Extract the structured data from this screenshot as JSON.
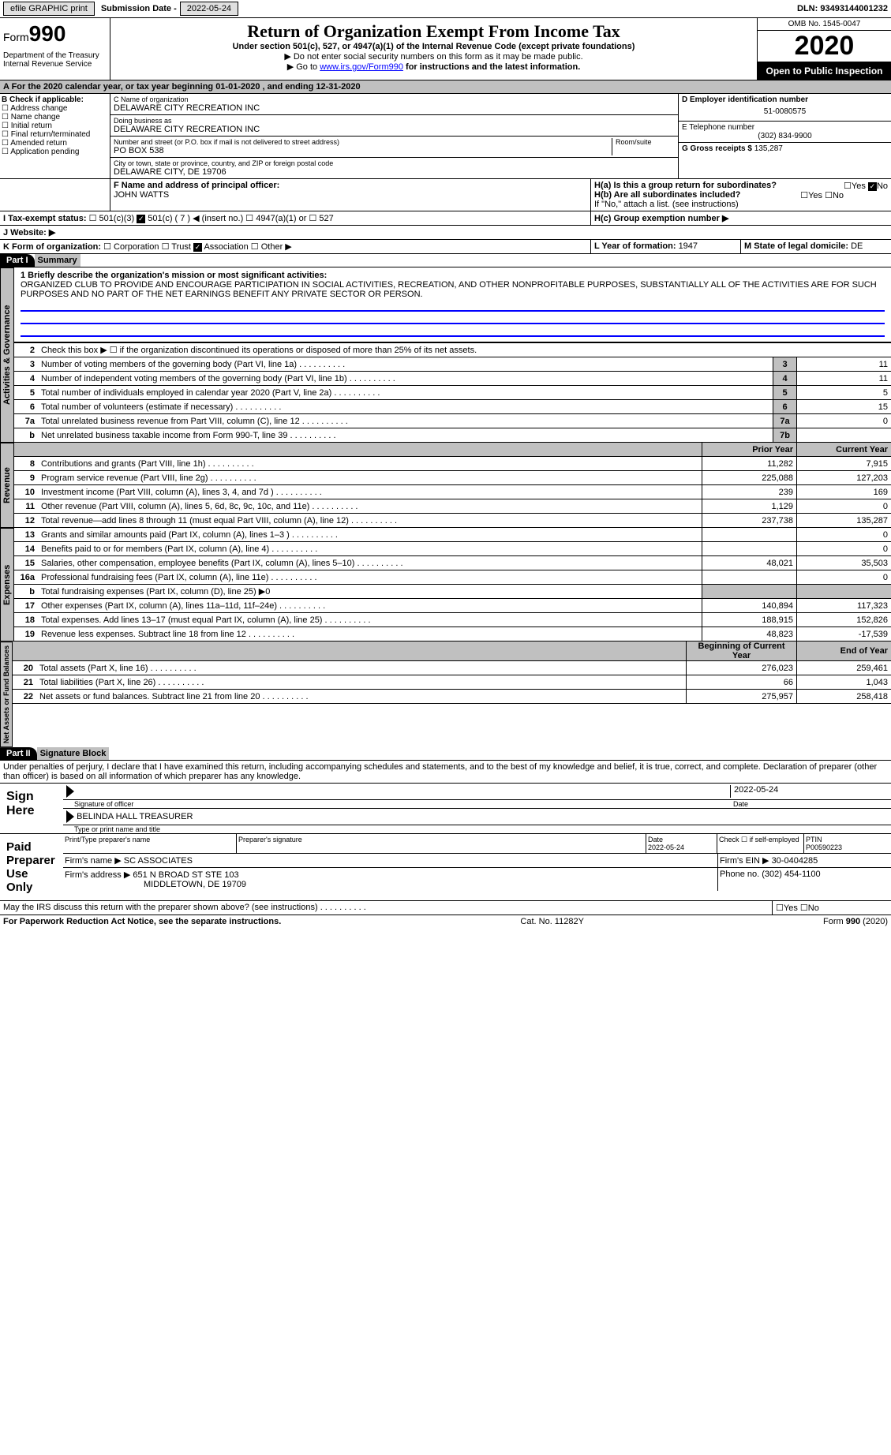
{
  "topbar": {
    "efile": "efile GRAPHIC print",
    "sub_label": "Submission Date - ",
    "sub_date": "2022-05-24",
    "dln_label": "DLN: ",
    "dln": "93493144001232"
  },
  "header": {
    "form_word": "Form",
    "form_num": "990",
    "title": "Return of Organization Exempt From Income Tax",
    "subtitle": "Under section 501(c), 527, or 4947(a)(1) of the Internal Revenue Code (except private foundations)",
    "note1": "▶ Do not enter social security numbers on this form as it may be made public.",
    "note2_pre": "▶ Go to ",
    "note2_link": "www.irs.gov/Form990",
    "note2_post": " for instructions and the latest information.",
    "omb": "OMB No. 1545-0047",
    "year": "2020",
    "inspect": "Open to Public Inspection",
    "dept": "Department of the Treasury\nInternal Revenue Service"
  },
  "period": "A For the 2020 calendar year, or tax year beginning 01-01-2020      , and ending 12-31-2020",
  "sectionB": {
    "label": "B Check if applicable:",
    "items": [
      "Address change",
      "Name change",
      "Initial return",
      "Final return/terminated",
      "Amended return",
      "Application pending"
    ]
  },
  "sectionC": {
    "name_label": "C Name of organization",
    "name": "DELAWARE CITY RECREATION INC",
    "dba_label": "Doing business as",
    "dba": "DELAWARE CITY RECREATION INC",
    "addr_label": "Number and street (or P.O. box if mail is not delivered to street address)",
    "addr": "PO BOX 538",
    "room_label": "Room/suite",
    "city_label": "City or town, state or province, country, and ZIP or foreign postal code",
    "city": "DELAWARE CITY, DE  19706"
  },
  "sectionD": {
    "ein_label": "D Employer identification number",
    "ein": "51-0080575",
    "phone_label": "E Telephone number",
    "phone": "(302) 834-9900",
    "gross_label": "G Gross receipts $ ",
    "gross": "135,287"
  },
  "sectionF": {
    "label": "F  Name and address of principal officer:",
    "name": "JOHN WATTS"
  },
  "sectionH": {
    "a": "H(a)  Is this a group return for subordinates?",
    "b": "H(b)  Are all subordinates included?",
    "b_note": "If \"No,\" attach a list. (see instructions)",
    "c": "H(c)  Group exemption number ▶",
    "yes": "Yes",
    "no": "No"
  },
  "sectionI": {
    "label": "I    Tax-exempt status:",
    "opts": [
      "501(c)(3)",
      "501(c) ( 7 ) ◀ (insert no.)",
      "4947(a)(1) or",
      "527"
    ]
  },
  "sectionJ": {
    "label": "J    Website: ▶"
  },
  "sectionK": {
    "label": "K Form of organization:",
    "opts": [
      "Corporation",
      "Trust",
      "Association",
      "Other ▶"
    ]
  },
  "sectionL": {
    "label": "L Year of formation: ",
    "val": "1947"
  },
  "sectionM": {
    "label": "M State of legal domicile: ",
    "val": "DE"
  },
  "part1": {
    "hdr": "Part I",
    "title": "Summary",
    "tab1": "Activities & Governance",
    "tab2": "Revenue",
    "tab3": "Expenses",
    "tab4": "Net Assets or Fund Balances",
    "line1_label": "1  Briefly describe the organization's mission or most significant activities:",
    "mission": "ORGANIZED CLUB TO PROVIDE AND ENCOURAGE PARTICIPATION IN SOCIAL ACTIVITIES, RECREATION, AND OTHER NONPROFITABLE PURPOSES, SUBSTANTIALLY ALL OF THE ACTIVITIES ARE FOR SUCH PURPOSES AND NO PART OF THE NET EARNINGS BENEFIT ANY PRIVATE SECTOR OR PERSON.",
    "line2": "Check this box ▶ ☐ if the organization discontinued its operations or disposed of more than 25% of its net assets.",
    "lines_gov": [
      {
        "n": "3",
        "t": "Number of voting members of the governing body (Part VI, line 1a)",
        "b": "3",
        "v": "11"
      },
      {
        "n": "4",
        "t": "Number of independent voting members of the governing body (Part VI, line 1b)",
        "b": "4",
        "v": "11"
      },
      {
        "n": "5",
        "t": "Total number of individuals employed in calendar year 2020 (Part V, line 2a)",
        "b": "5",
        "v": "5"
      },
      {
        "n": "6",
        "t": "Total number of volunteers (estimate if necessary)",
        "b": "6",
        "v": "15"
      },
      {
        "n": "7a",
        "t": "Total unrelated business revenue from Part VIII, column (C), line 12",
        "b": "7a",
        "v": "0"
      },
      {
        "n": "b",
        "t": "Net unrelated business taxable income from Form 990-T, line 39",
        "b": "7b",
        "v": ""
      }
    ],
    "col_prior": "Prior Year",
    "col_current": "Current Year",
    "col_beg": "Beginning of Current Year",
    "col_end": "End of Year",
    "lines_rev": [
      {
        "n": "8",
        "t": "Contributions and grants (Part VIII, line 1h)",
        "p": "11,282",
        "c": "7,915"
      },
      {
        "n": "9",
        "t": "Program service revenue (Part VIII, line 2g)",
        "p": "225,088",
        "c": "127,203"
      },
      {
        "n": "10",
        "t": "Investment income (Part VIII, column (A), lines 3, 4, and 7d )",
        "p": "239",
        "c": "169"
      },
      {
        "n": "11",
        "t": "Other revenue (Part VIII, column (A), lines 5, 6d, 8c, 9c, 10c, and 11e)",
        "p": "1,129",
        "c": "0"
      },
      {
        "n": "12",
        "t": "Total revenue—add lines 8 through 11 (must equal Part VIII, column (A), line 12)",
        "p": "237,738",
        "c": "135,287"
      }
    ],
    "lines_exp": [
      {
        "n": "13",
        "t": "Grants and similar amounts paid (Part IX, column (A), lines 1–3 )",
        "p": "",
        "c": "0"
      },
      {
        "n": "14",
        "t": "Benefits paid to or for members (Part IX, column (A), line 4)",
        "p": "",
        "c": "0"
      },
      {
        "n": "15",
        "t": "Salaries, other compensation, employee benefits (Part IX, column (A), lines 5–10)",
        "p": "48,021",
        "c": "35,503"
      },
      {
        "n": "16a",
        "t": "Professional fundraising fees (Part IX, column (A), line 11e)",
        "p": "",
        "c": "0"
      },
      {
        "n": "b",
        "t": "Total fundraising expenses (Part IX, column (D), line 25) ▶0",
        "p": null,
        "c": null
      },
      {
        "n": "17",
        "t": "Other expenses (Part IX, column (A), lines 11a–11d, 11f–24e)",
        "p": "140,894",
        "c": "117,323"
      },
      {
        "n": "18",
        "t": "Total expenses. Add lines 13–17 (must equal Part IX, column (A), line 25)",
        "p": "188,915",
        "c": "152,826"
      },
      {
        "n": "19",
        "t": "Revenue less expenses. Subtract line 18 from line 12",
        "p": "48,823",
        "c": "-17,539"
      }
    ],
    "lines_net": [
      {
        "n": "20",
        "t": "Total assets (Part X, line 16)",
        "p": "276,023",
        "c": "259,461"
      },
      {
        "n": "21",
        "t": "Total liabilities (Part X, line 26)",
        "p": "66",
        "c": "1,043"
      },
      {
        "n": "22",
        "t": "Net assets or fund balances. Subtract line 21 from line 20",
        "p": "275,957",
        "c": "258,418"
      }
    ]
  },
  "part2": {
    "hdr": "Part II",
    "title": "Signature Block",
    "decl": "Under penalties of perjury, I declare that I have examined this return, including accompanying schedules and statements, and to the best of my knowledge and belief, it is true, correct, and complete. Declaration of preparer (other than officer) is based on all information of which preparer has any knowledge.",
    "sign_here": "Sign Here",
    "sig_officer": "Signature of officer",
    "sig_date": "2022-05-24",
    "sig_date_label": "Date",
    "sig_name": "BELINDA HALL TREASURER",
    "sig_name_label": "Type or print name and title",
    "paid": "Paid Preparer Use Only",
    "prep_name_label": "Print/Type preparer's name",
    "prep_sig_label": "Preparer's signature",
    "prep_date_label": "Date",
    "prep_date": "2022-05-24",
    "prep_check": "Check ☐ if self-employed",
    "ptin_label": "PTIN",
    "ptin": "P00590223",
    "firm_name_label": "Firm's name     ▶ ",
    "firm_name": "SC ASSOCIATES",
    "firm_ein_label": "Firm's EIN ▶ ",
    "firm_ein": "30-0404285",
    "firm_addr_label": "Firm's address ▶ ",
    "firm_addr1": "651 N BROAD ST STE 103",
    "firm_addr2": "MIDDLETOWN, DE  19709",
    "firm_phone_label": "Phone no. ",
    "firm_phone": "(302) 454-1100",
    "discuss": "May the IRS discuss this return with the preparer shown above? (see instructions)"
  },
  "footer": {
    "left": "For Paperwork Reduction Act Notice, see the separate instructions.",
    "mid": "Cat. No. 11282Y",
    "right_pre": "Form ",
    "right_form": "990",
    "right_post": " (2020)"
  }
}
